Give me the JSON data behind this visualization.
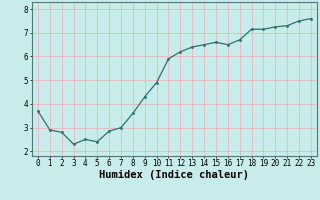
{
  "x": [
    0,
    1,
    2,
    3,
    4,
    5,
    6,
    7,
    8,
    9,
    10,
    11,
    12,
    13,
    14,
    15,
    16,
    17,
    18,
    19,
    20,
    21,
    22,
    23
  ],
  "y": [
    3.7,
    2.9,
    2.8,
    2.3,
    2.5,
    2.4,
    2.85,
    3.0,
    3.6,
    4.3,
    4.9,
    5.9,
    6.2,
    6.4,
    6.5,
    6.6,
    6.5,
    6.7,
    7.15,
    7.15,
    7.25,
    7.3,
    7.5,
    7.6
  ],
  "xlabel": "Humidex (Indice chaleur)",
  "bg_color": "#c8ecec",
  "line_color": "#2e7070",
  "grid_color": "#e8b8b8",
  "xlim": [
    -0.5,
    23.5
  ],
  "ylim": [
    1.8,
    8.3
  ],
  "xticks": [
    0,
    1,
    2,
    3,
    4,
    5,
    6,
    7,
    8,
    9,
    10,
    11,
    12,
    13,
    14,
    15,
    16,
    17,
    18,
    19,
    20,
    21,
    22,
    23
  ],
  "yticks": [
    2,
    3,
    4,
    5,
    6,
    7,
    8
  ],
  "tick_fontsize": 5.5,
  "xlabel_fontsize": 7.5
}
